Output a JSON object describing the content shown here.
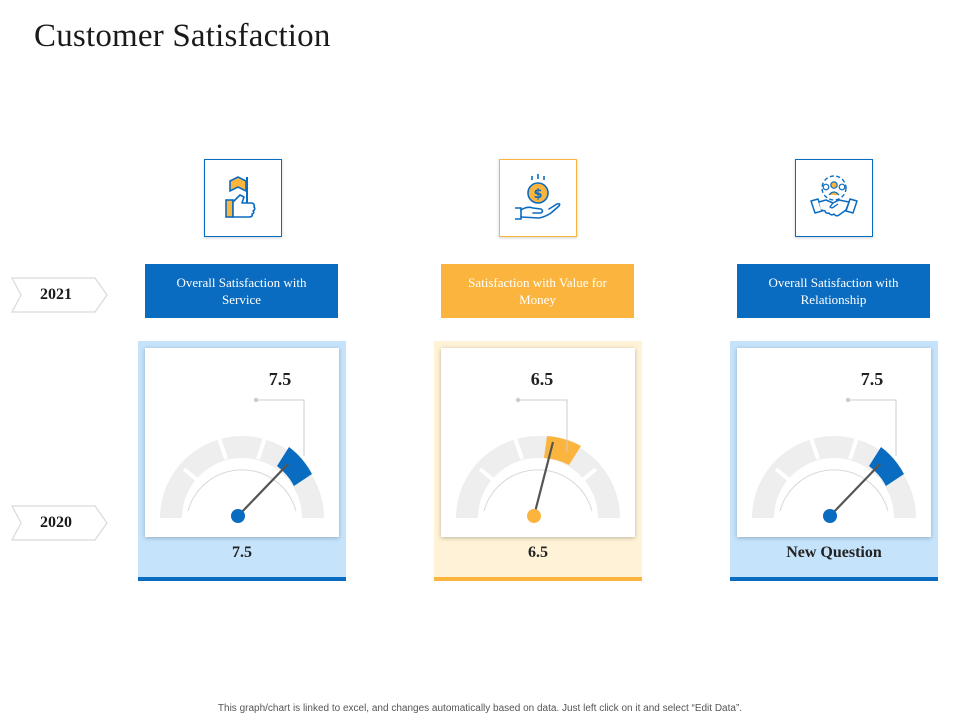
{
  "page": {
    "title": "Customer Satisfaction",
    "footnote": "This graph/chart is linked to excel, and changes automatically based on data. Just left click on it and select “Edit Data”."
  },
  "colors": {
    "blue": "#0a6cc0",
    "orange": "#fbb53f",
    "light_blue": "#c5e3fb",
    "light_orange": "#fff2d6",
    "track": "#eeeeee"
  },
  "years": {
    "top": "2021",
    "bottom": "2020"
  },
  "cards": [
    {
      "icon": "thumbs-up-flag-icon",
      "label": "Overall Satisfaction with Service",
      "gauge_value": "7.5",
      "bottom_value": "7.5",
      "accent": "blue"
    },
    {
      "icon": "hand-coin-icon",
      "label": "Satisfaction with Value for Money",
      "gauge_value": "6.5",
      "bottom_value": "6.5",
      "accent": "orange"
    },
    {
      "icon": "handshake-team-icon",
      "label": "Overall Satisfaction with Relationship",
      "gauge_value": "7.5",
      "bottom_value": "New Question",
      "accent": "blue"
    }
  ]
}
